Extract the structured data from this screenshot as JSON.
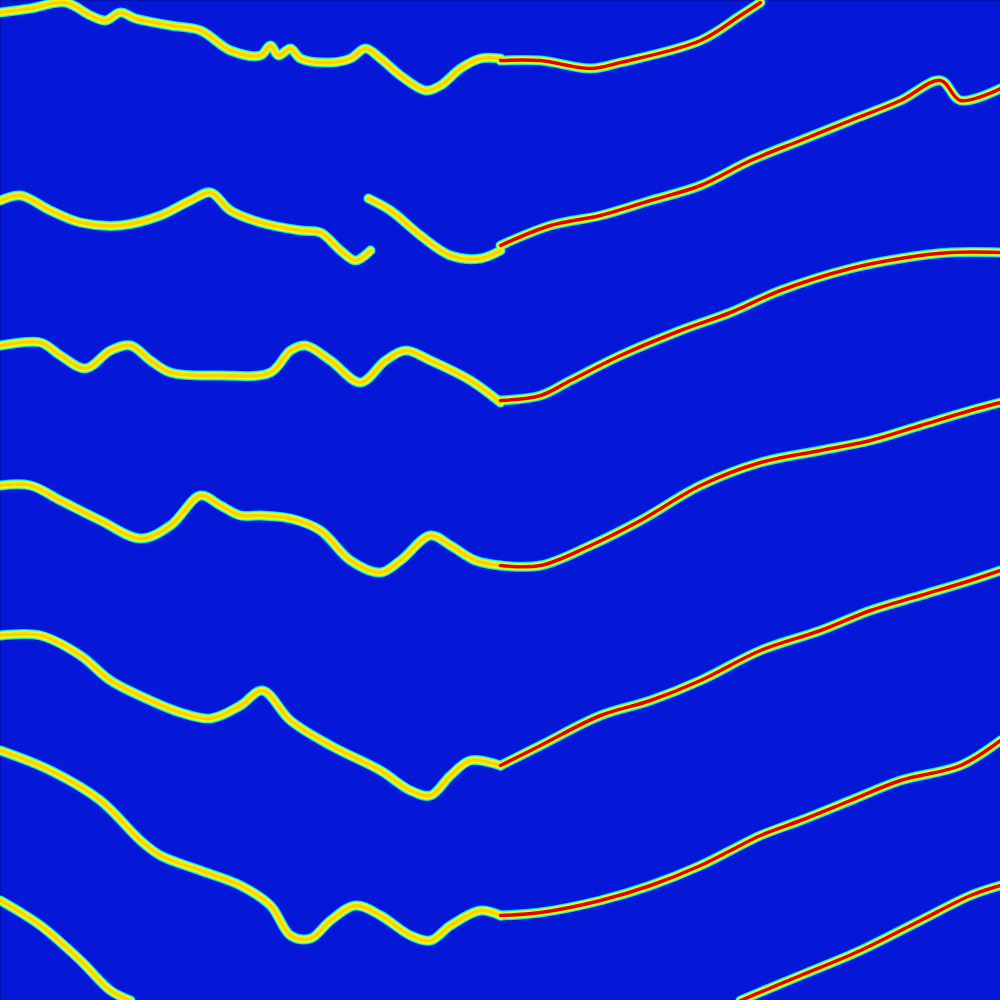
{
  "chart_data": {
    "type": "line",
    "tick_labels": false,
    "grid": false,
    "xlim": [
      0,
      1000
    ],
    "ylim": [
      0,
      1000
    ],
    "series": [
      {
        "color": "#ffd000",
        "x": [
          0,
          30,
          65,
          90,
          105,
          120,
          135,
          170,
          200,
          230,
          260,
          270,
          278,
          290,
          300,
          330,
          350,
          365,
          380,
          400,
          425,
          440,
          460,
          480,
          500
        ],
        "values": [
          12,
          8,
          2,
          15,
          20,
          12,
          18,
          25,
          30,
          50,
          55,
          45,
          55,
          48,
          58,
          62,
          58,
          48,
          58,
          75,
          90,
          85,
          68,
          58,
          58
        ]
      },
      {
        "color": "#e00000",
        "x": [
          500,
          540,
          590,
          620,
          700,
          740,
          760
        ],
        "values": [
          60,
          60,
          68,
          62,
          40,
          15,
          2
        ]
      },
      {
        "color": "#ffd000",
        "x": [
          0,
          20,
          50,
          80,
          120,
          160,
          190,
          210,
          230,
          260,
          300,
          320,
          340,
          355,
          370
        ],
        "values": [
          200,
          195,
          210,
          222,
          225,
          215,
          200,
          192,
          210,
          222,
          230,
          232,
          250,
          260,
          250
        ]
      },
      {
        "color": "#ffd000",
        "x": [
          368,
          390,
          420,
          450,
          480,
          500
        ],
        "values": [
          198,
          210,
          235,
          255,
          258,
          250
        ]
      },
      {
        "color": "#e00000",
        "x": [
          500,
          550,
          600,
          650,
          700,
          750,
          800,
          850,
          900,
          940,
          960,
          1000
        ],
        "values": [
          245,
          225,
          215,
          200,
          185,
          160,
          140,
          120,
          100,
          80,
          100,
          88
        ]
      },
      {
        "color": "#ffd000",
        "x": [
          0,
          40,
          60,
          85,
          110,
          130,
          150,
          170,
          220,
          270,
          290,
          305,
          330,
          360,
          385,
          405,
          430,
          470,
          500
        ],
        "values": [
          345,
          342,
          355,
          368,
          350,
          345,
          360,
          372,
          375,
          372,
          350,
          345,
          360,
          382,
          360,
          350,
          360,
          380,
          402
        ]
      },
      {
        "color": "#e00000",
        "x": [
          500,
          540,
          570,
          620,
          680,
          730,
          780,
          850,
          900,
          950,
          1000
        ],
        "values": [
          400,
          395,
          380,
          355,
          330,
          312,
          290,
          268,
          258,
          252,
          252
        ]
      },
      {
        "color": "#ffd000",
        "x": [
          0,
          30,
          60,
          100,
          140,
          170,
          200,
          220,
          240,
          260,
          290,
          320,
          350,
          380,
          400,
          430,
          450,
          475,
          500
        ],
        "values": [
          485,
          485,
          500,
          520,
          538,
          525,
          495,
          505,
          515,
          515,
          518,
          530,
          560,
          572,
          560,
          535,
          545,
          560,
          565
        ]
      },
      {
        "color": "#e00000",
        "x": [
          500,
          540,
          590,
          640,
          700,
          760,
          820,
          870,
          920,
          970,
          1000
        ],
        "values": [
          565,
          565,
          545,
          520,
          485,
          462,
          450,
          440,
          425,
          410,
          402
        ]
      },
      {
        "color": "#ffd000",
        "x": [
          0,
          40,
          80,
          110,
          150,
          180,
          210,
          240,
          262,
          290,
          330,
          380,
          410,
          430,
          450,
          470,
          500
        ],
        "values": [
          635,
          635,
          655,
          680,
          700,
          712,
          718,
          705,
          690,
          720,
          745,
          770,
          790,
          795,
          775,
          760,
          765
        ]
      },
      {
        "color": "#e00000",
        "x": [
          500,
          540,
          600,
          650,
          700,
          760,
          820,
          870,
          920,
          970,
          1000
        ],
        "values": [
          765,
          745,
          715,
          700,
          680,
          650,
          630,
          610,
          595,
          580,
          570
        ]
      },
      {
        "color": "#ffd000",
        "x": [
          0,
          50,
          100,
          140,
          160,
          200,
          240,
          270,
          290,
          310,
          330,
          355,
          380,
          410,
          430,
          450,
          480,
          500
        ],
        "values": [
          750,
          770,
          800,
          840,
          855,
          870,
          885,
          905,
          935,
          938,
          920,
          905,
          915,
          935,
          940,
          925,
          910,
          915
        ]
      },
      {
        "color": "#e00000",
        "x": [
          500,
          540,
          600,
          650,
          700,
          730,
          760,
          800,
          850,
          900,
          960,
          1000
        ],
        "values": [
          915,
          912,
          900,
          885,
          865,
          850,
          835,
          820,
          800,
          780,
          765,
          740
        ]
      },
      {
        "color": "#ffd000",
        "x": [
          0,
          40,
          80,
          110,
          130
        ],
        "values": [
          900,
          925,
          960,
          990,
          1000
        ]
      },
      {
        "color": "#e00000",
        "x": [
          740,
          800,
          860,
          920,
          970,
          1000
        ],
        "values": [
          1000,
          975,
          950,
          920,
          895,
          885
        ]
      }
    ]
  }
}
